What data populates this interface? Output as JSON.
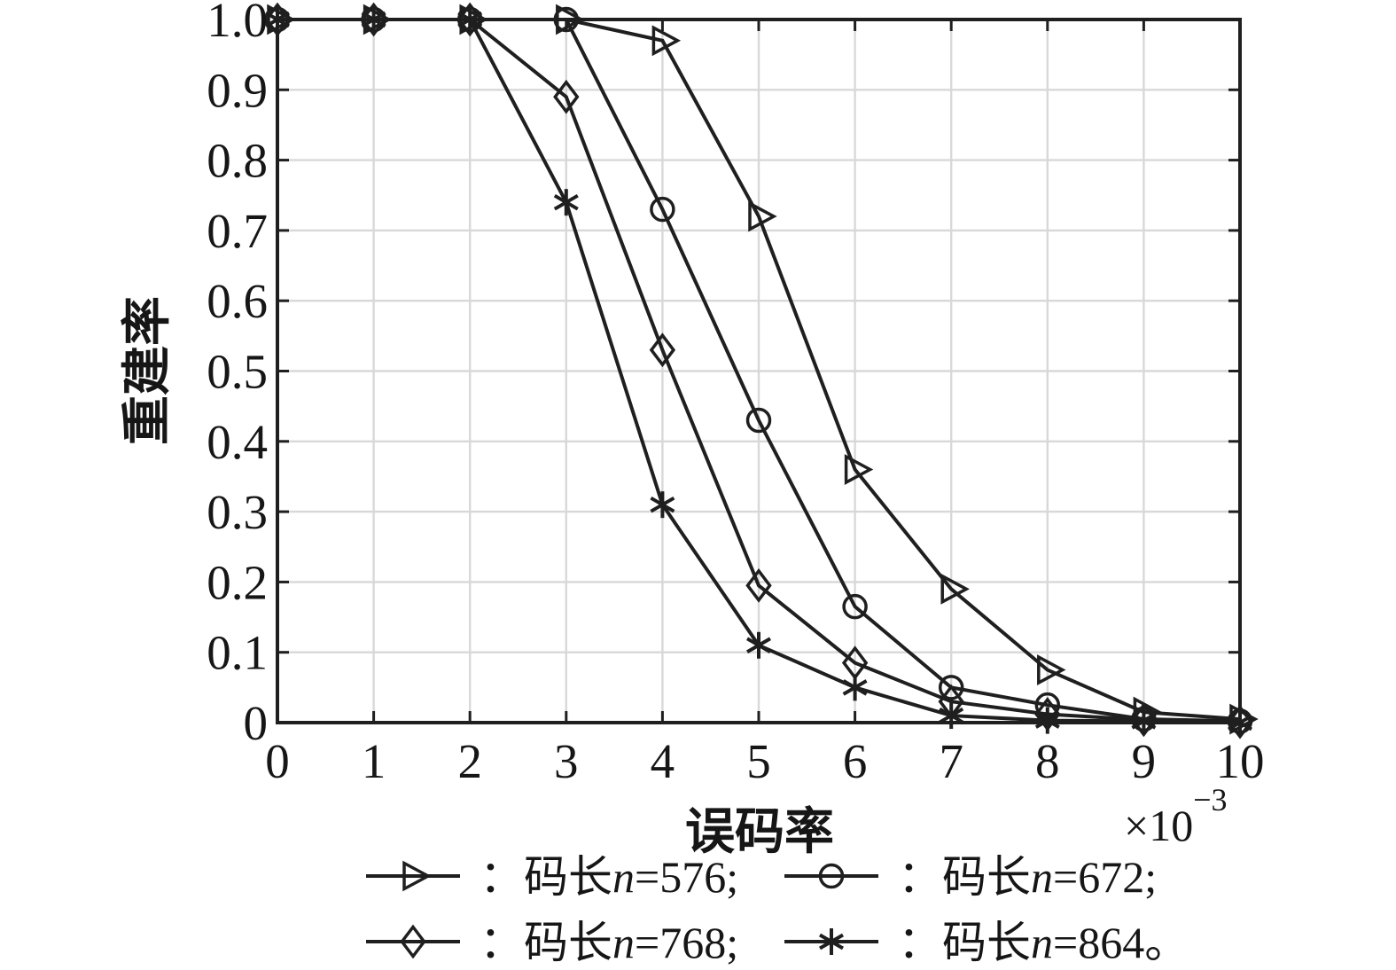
{
  "figure": {
    "background": "#ffffff",
    "line_color": "#1f1f1f",
    "grid_color": "#d8d8d8",
    "text_color": "#161616"
  },
  "axes": {
    "xlabel": "误码率",
    "ylabel": "重建率",
    "x_multiplier_base": "×10",
    "x_multiplier_exp": "−3",
    "x_tick_labels": [
      "0",
      "1",
      "2",
      "3",
      "4",
      "5",
      "6",
      "7",
      "8",
      "9",
      "10"
    ],
    "y_tick_labels": [
      "0",
      "0.1",
      "0.2",
      "0.3",
      "0.4",
      "0.5",
      "0.6",
      "0.7",
      "0.8",
      "0.9",
      "1.0"
    ]
  },
  "legend": {
    "items": [
      {
        "marker": "triangle-right",
        "prefix": "：码长",
        "var": "n",
        "rest": "=576;"
      },
      {
        "marker": "circle",
        "prefix": "：码长",
        "var": "n",
        "rest": "=672;"
      },
      {
        "marker": "diamond",
        "prefix": "：码长",
        "var": "n",
        "rest": "=768;"
      },
      {
        "marker": "asterisk",
        "prefix": "：码长",
        "var": "n",
        "rest": "=864。"
      }
    ]
  },
  "chart_data": {
    "type": "line",
    "title": "",
    "xlabel": "误码率 (×10⁻³)",
    "ylabel": "重建率",
    "x": [
      0,
      1,
      2,
      3,
      4,
      5,
      6,
      7,
      8,
      9,
      10
    ],
    "xlim": [
      0,
      10
    ],
    "ylim": [
      0,
      1.0
    ],
    "x_tick_step": 1,
    "y_tick_step": 0.1,
    "grid": true,
    "legend_position": "below",
    "series": [
      {
        "name": "码长n=576",
        "marker": "triangle-right",
        "values": [
          1.0,
          1.0,
          1.0,
          1.0,
          0.97,
          0.72,
          0.36,
          0.19,
          0.075,
          0.015,
          0.005
        ]
      },
      {
        "name": "码长n=672",
        "marker": "circle",
        "values": [
          1.0,
          1.0,
          1.0,
          1.0,
          0.73,
          0.43,
          0.165,
          0.05,
          0.025,
          0.005,
          0.002
        ]
      },
      {
        "name": "码长n=768",
        "marker": "diamond",
        "values": [
          1.0,
          1.0,
          1.0,
          0.89,
          0.53,
          0.195,
          0.085,
          0.03,
          0.012,
          0.004,
          0.001
        ]
      },
      {
        "name": "码长n=864",
        "marker": "asterisk",
        "values": [
          1.0,
          1.0,
          1.0,
          0.74,
          0.31,
          0.11,
          0.05,
          0.01,
          0.003,
          0.002,
          0.0
        ]
      }
    ]
  }
}
